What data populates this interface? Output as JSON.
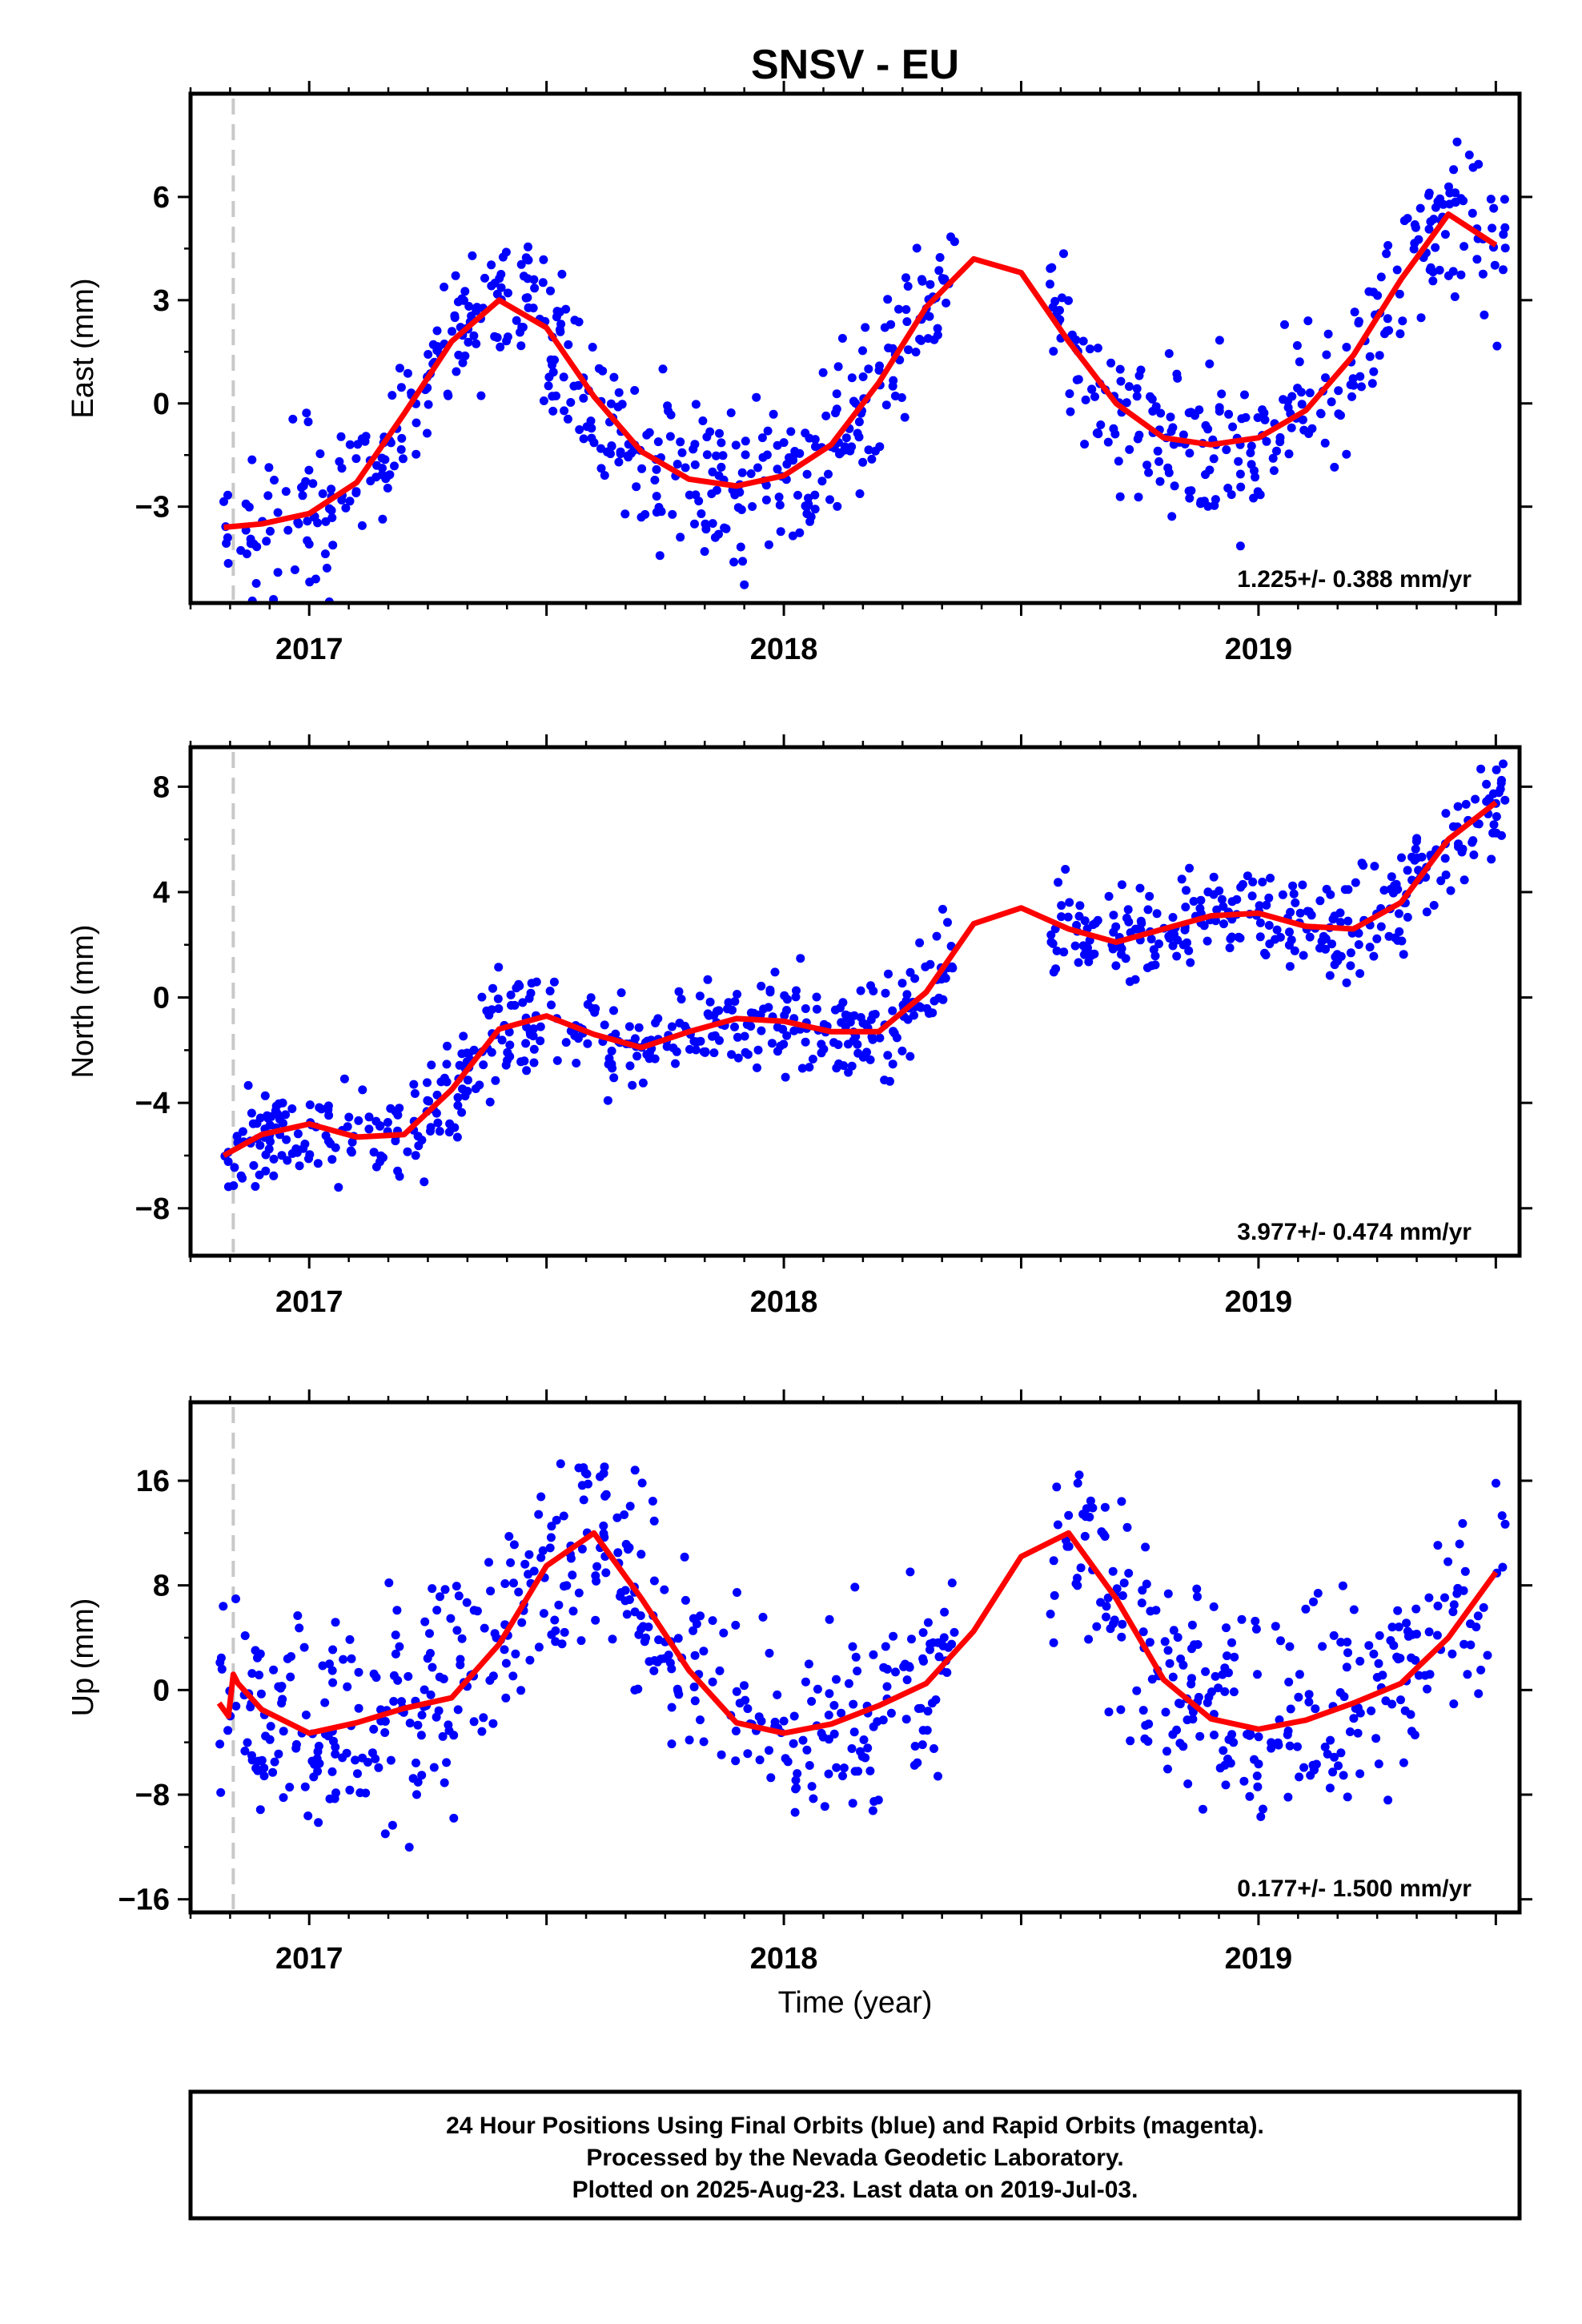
{
  "title": "SNSV - EU",
  "xlabel": "Time (year)",
  "footer": [
    "24 Hour Positions Using Final Orbits (blue) and Rapid Orbits (magenta).",
    "Processed by the Nevada Geodetic Laboratory.",
    "Plotted on 2025-Aug-23. Last data on 2019-Jul-03."
  ],
  "colors": {
    "final_orbits": "#0000ff",
    "rapid_orbits": "#ff00ff",
    "model": "#ff0000",
    "reference_line": "#c8c8c8"
  },
  "chart_data": [
    {
      "type": "scatter",
      "ylabel": "East (mm)",
      "rate_label": "1.225+/- 0.388 mm/yr",
      "xlim": [
        2016.75,
        2019.55
      ],
      "ylim": [
        -5.8,
        9.0
      ],
      "yticks": [
        -3,
        0,
        3,
        6
      ],
      "xticks": [
        2017,
        2018,
        2019
      ],
      "reference_line_x": 2016.84,
      "grid": false,
      "fit_x": [
        2016.82,
        2016.9,
        2017.0,
        2017.1,
        2017.2,
        2017.3,
        2017.4,
        2017.5,
        2017.6,
        2017.7,
        2017.8,
        2017.9,
        2018.0,
        2018.1,
        2018.2,
        2018.3,
        2018.4,
        2018.5,
        2018.6,
        2018.7,
        2018.8,
        2018.9,
        2019.0,
        2019.1,
        2019.2,
        2019.3,
        2019.4,
        2019.5
      ],
      "fit_y": [
        -3.6,
        -3.5,
        -3.2,
        -2.3,
        -0.3,
        1.8,
        3.0,
        2.2,
        0.2,
        -1.4,
        -2.2,
        -2.4,
        -2.1,
        -1.2,
        0.6,
        2.8,
        4.2,
        3.8,
        1.8,
        0.0,
        -1.0,
        -1.2,
        -1.0,
        -0.2,
        1.4,
        3.6,
        5.5,
        4.6
      ],
      "scatter_summary": {
        "n": 820,
        "noise_mm": 1.1,
        "gap": [
          2018.36,
          2018.56
        ]
      }
    },
    {
      "type": "scatter",
      "ylabel": "North (mm)",
      "rate_label": "3.977+/- 0.474 mm/yr",
      "xlim": [
        2016.75,
        2019.55
      ],
      "ylim": [
        -9.8,
        9.5
      ],
      "yticks": [
        -8,
        -4,
        0,
        4,
        8
      ],
      "xticks": [
        2017,
        2018,
        2019
      ],
      "reference_line_x": 2016.84,
      "grid": false,
      "fit_x": [
        2016.82,
        2016.9,
        2017.0,
        2017.1,
        2017.2,
        2017.3,
        2017.4,
        2017.5,
        2017.6,
        2017.7,
        2017.8,
        2017.9,
        2018.0,
        2018.1,
        2018.2,
        2018.3,
        2018.4,
        2018.5,
        2018.6,
        2018.7,
        2018.8,
        2018.9,
        2019.0,
        2019.1,
        2019.2,
        2019.3,
        2019.4,
        2019.5
      ],
      "fit_y": [
        -6.0,
        -5.2,
        -4.8,
        -5.3,
        -5.2,
        -3.5,
        -1.2,
        -0.7,
        -1.4,
        -1.9,
        -1.3,
        -0.8,
        -0.9,
        -1.3,
        -1.3,
        0.2,
        2.8,
        3.4,
        2.6,
        2.1,
        2.6,
        3.1,
        3.2,
        2.7,
        2.6,
        3.6,
        6.0,
        7.4
      ],
      "scatter_summary": {
        "n": 820,
        "noise_mm": 0.9,
        "gap": [
          2018.36,
          2018.56
        ]
      }
    },
    {
      "type": "scatter",
      "ylabel": "Up (mm)",
      "rate_label": "0.177+/- 1.500 mm/yr",
      "xlim": [
        2016.75,
        2019.55
      ],
      "ylim": [
        -17,
        22
      ],
      "yticks": [
        -16,
        -8,
        0,
        8,
        16
      ],
      "xticks": [
        2017,
        2018,
        2019
      ],
      "reference_line_x": 2016.84,
      "grid": false,
      "fit_x": [
        2016.81,
        2016.83,
        2016.84,
        2016.85,
        2016.9,
        2017.0,
        2017.1,
        2017.2,
        2017.3,
        2017.4,
        2017.5,
        2017.6,
        2017.7,
        2017.8,
        2017.9,
        2018.0,
        2018.1,
        2018.2,
        2018.3,
        2018.4,
        2018.5,
        2018.6,
        2018.7,
        2018.8,
        2018.9,
        2019.0,
        2019.1,
        2019.2,
        2019.3,
        2019.4,
        2019.5
      ],
      "fit_y": [
        -1.0,
        -2.0,
        1.2,
        0.5,
        -1.5,
        -3.3,
        -2.5,
        -1.4,
        -0.6,
        3.5,
        9.5,
        12.0,
        7.0,
        1.5,
        -2.5,
        -3.3,
        -2.6,
        -1.2,
        0.5,
        4.5,
        10.2,
        12.0,
        7.0,
        0.8,
        -2.2,
        -3.0,
        -2.3,
        -1.0,
        0.5,
        4.0,
        9.0
      ],
      "scatter_summary": {
        "n": 820,
        "noise_mm": 4.0,
        "gap": [
          2018.36,
          2018.56
        ]
      }
    }
  ]
}
